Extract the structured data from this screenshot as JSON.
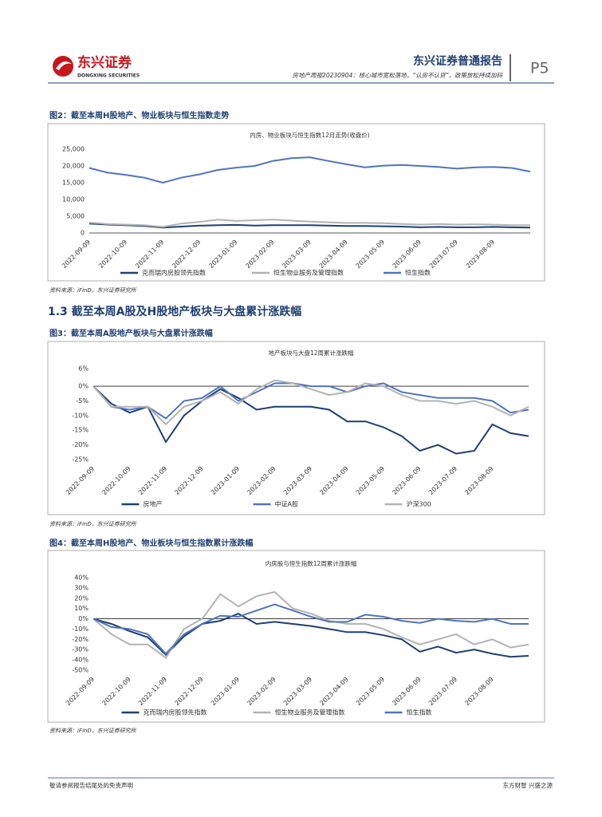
{
  "header": {
    "company": "东兴证券",
    "company_en": "DONGXING SECURITIES",
    "report_type": "东兴证券普通报告",
    "subtitle": "房地产周报20230904：核心城市宽松落地，“认房不认贷”，政策放松持续加码",
    "page": "P5"
  },
  "figures": [
    {
      "title": "图2：截至本周H股地产、物业板块与恒生指数走势",
      "source": "资料来源：iFinD，东兴证券研究所"
    },
    {
      "title": "图3：截至本周A股地产板块与大盘累计涨跌幅",
      "source": "资料来源：iFinD，东兴证券研究所"
    },
    {
      "title": "图4：截至本周H股地产、物业板块与恒生指数累计涨跌幅",
      "source": "资料来源：iFinD，东兴证券研究所"
    }
  ],
  "section_heading": "1.3 截至本周A股及H股地产板块与大盘累计涨跌幅",
  "footer": {
    "left": "敬请参阅报告结尾处的免责声明",
    "right": "东方财智 兴盛之源"
  },
  "chart_data": [
    {
      "type": "line",
      "title": "内房、物业板块与恒生指数12月走势(收盘价)",
      "legend": "bottom",
      "categories": [
        "2022-09-09",
        null,
        "2022-10-09",
        null,
        "2022-11-09",
        null,
        "2022-12-09",
        null,
        "2023-01-09",
        null,
        "2023-02-09",
        null,
        "2023-03-09",
        null,
        "2023-04-09",
        null,
        "2023-05-09",
        null,
        "2023-06-09",
        null,
        "2023-07-09",
        null,
        "2023-08-09",
        null,
        null
      ],
      "ylim": [
        0,
        25000
      ],
      "yticks": [
        0,
        {
          "value": 5000,
          "label": "5,000"
        },
        {
          "value": 10000,
          "label": "10,000"
        },
        {
          "value": 15000,
          "label": "15,000"
        },
        {
          "value": 20000,
          "label": "20,000"
        },
        {
          "value": 25000,
          "label": "25,000"
        }
      ],
      "series": [
        {
          "name": "克而瑞内房股领先指数",
          "color": "#1f3f73",
          "values": [
            2800,
            2500,
            2300,
            2100,
            1600,
            1900,
            2200,
            2300,
            2400,
            2200,
            2300,
            2300,
            2300,
            2200,
            2100,
            2100,
            2000,
            1900,
            1700,
            1800,
            1700,
            1700,
            1800,
            1700,
            1600
          ]
        },
        {
          "name": "恒生物业服务及管理指数",
          "color": "#b3b3b3",
          "values": [
            3100,
            2700,
            2500,
            2300,
            1800,
            2800,
            3300,
            4000,
            3600,
            3800,
            4000,
            3700,
            3400,
            3200,
            3000,
            3000,
            2900,
            2700,
            2500,
            2700,
            2500,
            2600,
            2500,
            2300,
            2300
          ]
        },
        {
          "name": "恒生指数",
          "color": "#4f74c0",
          "values": [
            19400,
            18000,
            17300,
            16500,
            15000,
            16500,
            17500,
            18800,
            19500,
            20000,
            21500,
            22300,
            22600,
            21500,
            20500,
            19600,
            20100,
            20300,
            20000,
            19700,
            19200,
            19600,
            19700,
            19400,
            18300
          ]
        }
      ]
    },
    {
      "type": "line",
      "title": "地产板块与大盘12周累计涨跌幅",
      "legend": "bottom",
      "categories": [
        "2022-09-09",
        null,
        "2022-10-09",
        null,
        "2022-11-09",
        null,
        "2022-12-09",
        null,
        "2023-01-09",
        null,
        "2023-02-09",
        null,
        "2023-03-09",
        null,
        "2023-04-09",
        null,
        "2023-05-09",
        null,
        "2023-06-09",
        null,
        "2023-07-09",
        null,
        "2023-08-09",
        null,
        null
      ],
      "ylim": [
        -25,
        6
      ],
      "yticks": [
        {
          "value": 6,
          "label": "6%"
        },
        {
          "value": 0,
          "label": "0%"
        },
        {
          "value": -5,
          "label": "-5%"
        },
        {
          "value": -10,
          "label": "-10%"
        },
        {
          "value": -15,
          "label": "-15%"
        },
        {
          "value": -20,
          "label": "-20%"
        },
        {
          "value": -25,
          "label": "-25%"
        }
      ],
      "series": [
        {
          "name": "房地产",
          "color": "#1f3f73",
          "values": [
            0,
            -6,
            -9,
            -7,
            -19,
            -10,
            -5,
            -1,
            -4,
            -8,
            -7,
            -7,
            -7,
            -8,
            -12,
            -12,
            -14,
            -17,
            -22,
            -20,
            -23,
            -22,
            -13,
            -16,
            -17
          ]
        },
        {
          "name": "中证A股",
          "color": "#4f74c0",
          "values": [
            0,
            -7,
            -8,
            -7,
            -11,
            -5,
            -4,
            0,
            -5,
            -2,
            1,
            1,
            0,
            0,
            -2,
            0,
            1,
            -2,
            -3,
            -4,
            -4,
            -4,
            -5,
            -9,
            -8
          ]
        },
        {
          "name": "沪深300",
          "color": "#b3b3b3",
          "values": [
            0,
            -7,
            -7,
            -7,
            -13,
            -7,
            -5,
            -2,
            -6,
            -1,
            2,
            1,
            -1,
            -3,
            -2,
            1,
            0,
            -3,
            -5,
            -5,
            -6,
            -5,
            -7,
            -10,
            -7
          ]
        }
      ]
    },
    {
      "type": "line",
      "title": "内房股与恒生指数12周累计涨跌幅",
      "legend": "bottom",
      "categories": [
        "2022-09-09",
        null,
        "2022-10-09",
        null,
        "2022-11-09",
        null,
        "2022-12-09",
        null,
        "2023-01-09",
        null,
        "2023-02-09",
        null,
        "2023-03-09",
        null,
        "2023-04-09",
        null,
        "2023-05-09",
        null,
        "2023-06-09",
        null,
        "2023-07-09",
        null,
        "2023-08-09",
        null,
        null
      ],
      "ylim": [
        -50,
        40
      ],
      "yticks": [
        {
          "value": 40,
          "label": "40%"
        },
        {
          "value": 30,
          "label": "30%"
        },
        {
          "value": 20,
          "label": "20%"
        },
        {
          "value": 10,
          "label": "10%"
        },
        {
          "value": 0,
          "label": "0%"
        },
        {
          "value": -10,
          "label": "-10%"
        },
        {
          "value": -20,
          "label": "-20%"
        },
        {
          "value": -30,
          "label": "-30%"
        },
        {
          "value": -40,
          "label": "-40%"
        },
        {
          "value": -50,
          "label": "-50%"
        }
      ],
      "series": [
        {
          "name": "克而瑞内房股领先指数",
          "color": "#1f3f73",
          "values": [
            0,
            -5,
            -12,
            -18,
            -35,
            -17,
            -5,
            -2,
            5,
            -5,
            -3,
            -5,
            -7,
            -10,
            -13,
            -13,
            -16,
            -20,
            -32,
            -27,
            -33,
            -30,
            -34,
            -37,
            -36
          ]
        },
        {
          "name": "恒生物业服务及管理指数",
          "color": "#b3b3b3",
          "values": [
            0,
            -15,
            -25,
            -25,
            -38,
            -10,
            0,
            24,
            12,
            22,
            26,
            10,
            5,
            -2,
            -5,
            -5,
            -10,
            -18,
            -25,
            -20,
            -15,
            -25,
            -20,
            -28,
            -25
          ]
        },
        {
          "name": "恒生指数",
          "color": "#4f74c0",
          "values": [
            0,
            -8,
            -10,
            -15,
            -34,
            -15,
            -5,
            3,
            2,
            8,
            14,
            8,
            2,
            -3,
            -3,
            4,
            2,
            -2,
            -4,
            0,
            -2,
            -3,
            0,
            -5,
            -5
          ]
        }
      ]
    }
  ]
}
